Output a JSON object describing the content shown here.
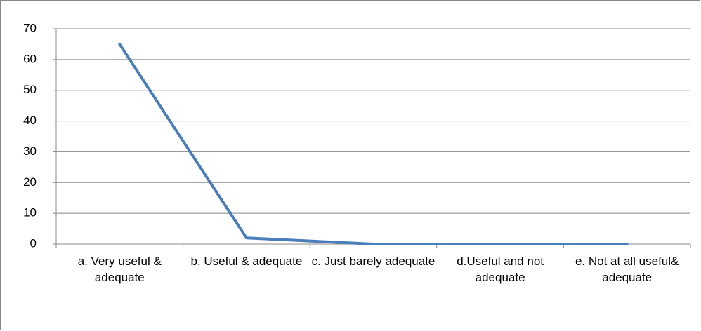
{
  "chart_data": {
    "type": "line",
    "categories": [
      "a. Very useful & adequate",
      "b. Useful & adequate",
      "c. Just barely adequate",
      "d.Useful and not adequate",
      "e. Not at all useful& adequate"
    ],
    "values": [
      65,
      2,
      0,
      0,
      0
    ],
    "color": "#4a7ebb",
    "ylim": [
      0,
      70
    ],
    "yticks": [
      0,
      10,
      20,
      30,
      40,
      50,
      60,
      70
    ],
    "grid": true
  }
}
